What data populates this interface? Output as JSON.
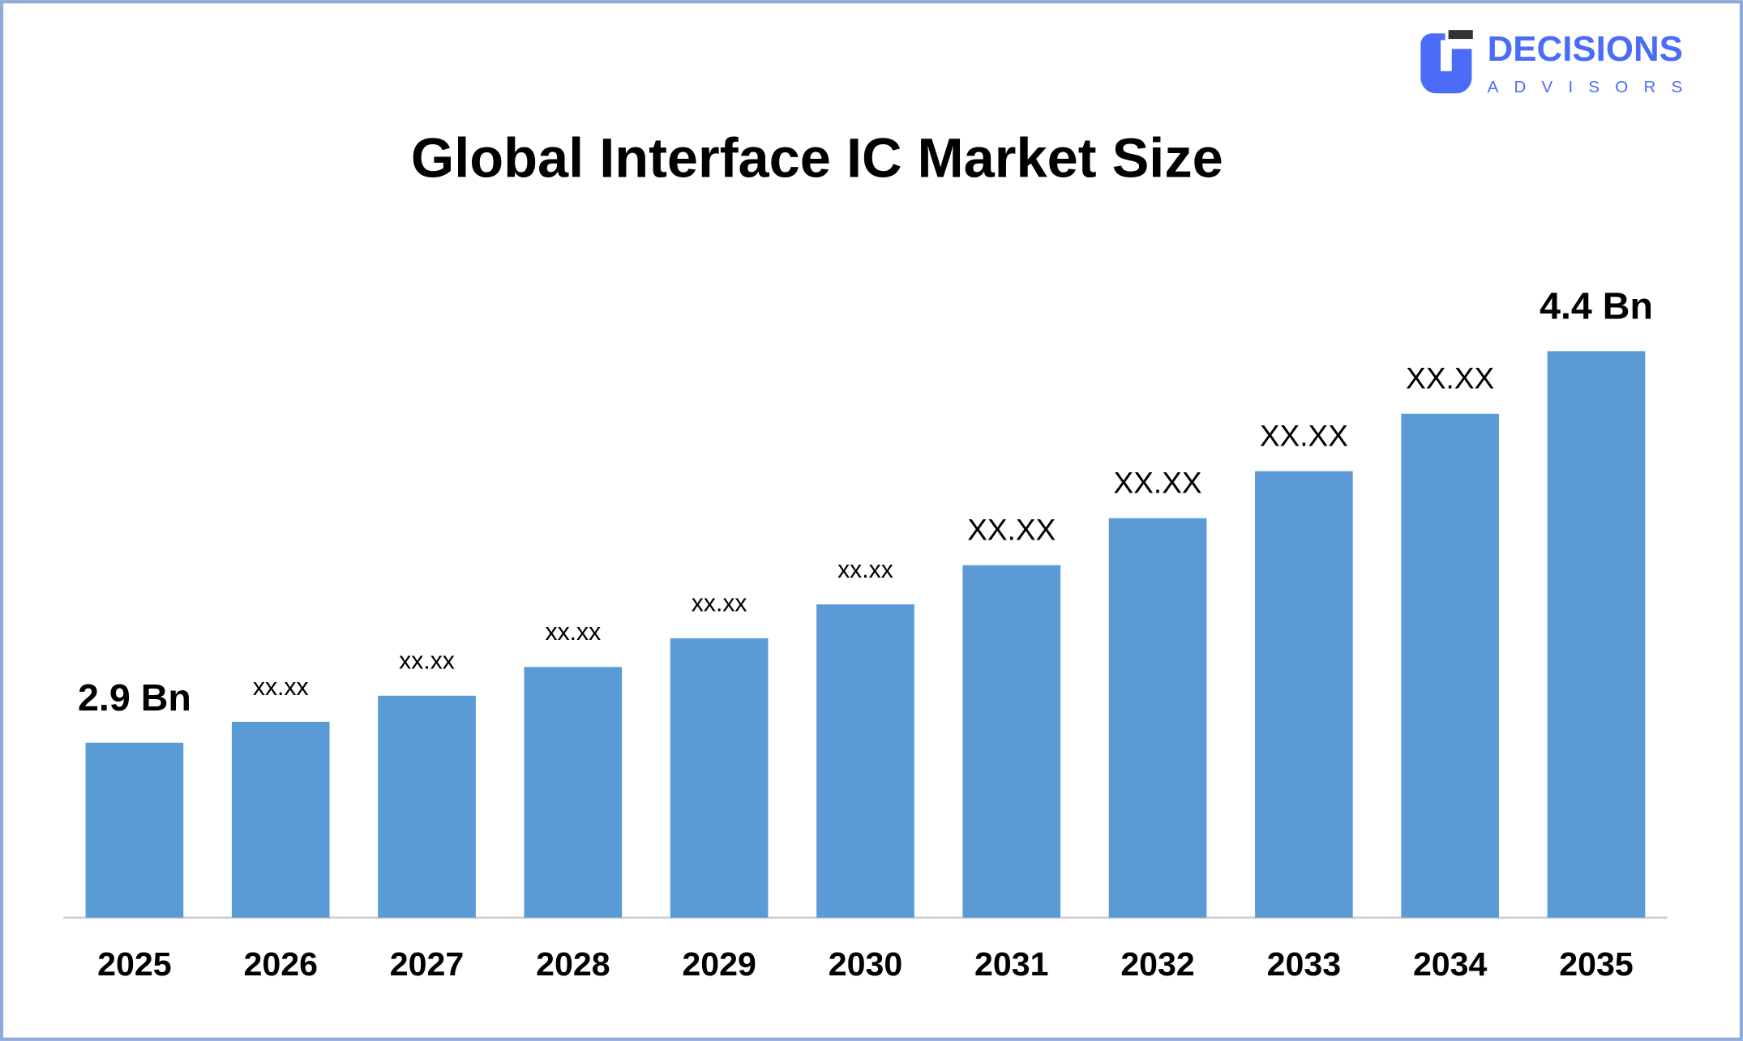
{
  "logo": {
    "name": "DECISIONS",
    "tagline": "ADVISORS"
  },
  "chart_data": {
    "type": "bar",
    "title": "Global Interface IC Market Size",
    "categories": [
      "2025",
      "2026",
      "2027",
      "2028",
      "2029",
      "2030",
      "2031",
      "2032",
      "2033",
      "2034",
      "2035"
    ],
    "values": [
      2.9,
      2.98,
      3.08,
      3.19,
      3.3,
      3.43,
      3.58,
      3.76,
      3.94,
      4.16,
      4.4
    ],
    "value_labels": [
      "2.9 Bn",
      "xx.xx",
      "xx.xx",
      "xx.xx",
      "xx.xx",
      "xx.xx",
      "XX.XX",
      "XX.XX",
      "XX.XX",
      "XX.XX",
      "4.4 Bn"
    ],
    "color": "#5b9bd5",
    "ylim": [
      2.23,
      4.6
    ]
  }
}
